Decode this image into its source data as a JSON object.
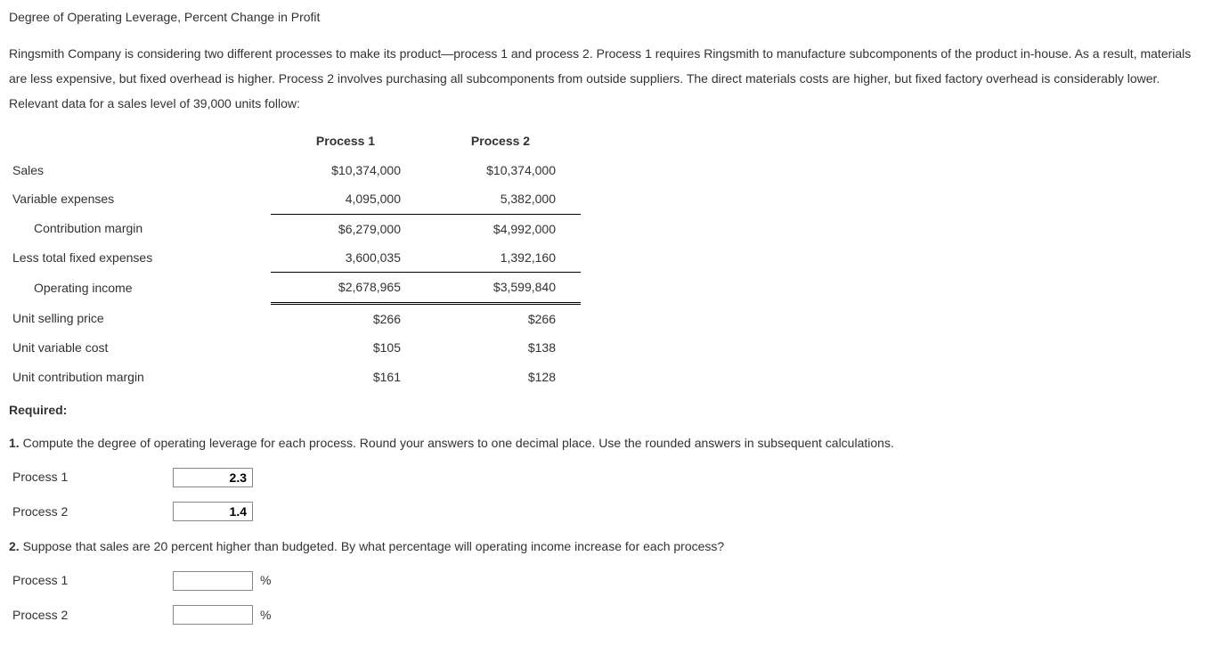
{
  "title": "Degree of Operating Leverage, Percent Change in Profit",
  "intro": "Ringsmith Company is considering two different processes to make its product—process 1 and process 2. Process 1 requires Ringsmith to manufacture subcomponents of the product in-house. As a result, materials are less expensive, but fixed overhead is higher. Process 2 involves purchasing all subcomponents from outside suppliers. The direct materials costs are higher, but fixed factory overhead is considerably lower. Relevant data for a sales level of 39,000 units follow:",
  "table": {
    "headers": {
      "p1": "Process 1",
      "p2": "Process 2"
    },
    "rows": {
      "sales": {
        "label": "Sales",
        "p1": "$10,374,000",
        "p2": "$10,374,000"
      },
      "varexp": {
        "label": "Variable expenses",
        "p1": "4,095,000",
        "p2": "5,382,000"
      },
      "cm": {
        "label": "Contribution margin",
        "p1": "$6,279,000",
        "p2": "$4,992,000"
      },
      "fixed": {
        "label": "Less total fixed expenses",
        "p1": "3,600,035",
        "p2": "1,392,160"
      },
      "opinc": {
        "label": "Operating income",
        "p1": "$2,678,965",
        "p2": "$3,599,840"
      },
      "usp": {
        "label": "Unit selling price",
        "p1": "$266",
        "p2": "$266"
      },
      "uvc": {
        "label": "Unit variable cost",
        "p1": "$105",
        "p2": "$138"
      },
      "ucm": {
        "label": "Unit contribution margin",
        "p1": "$161",
        "p2": "$128"
      }
    }
  },
  "required_label": "Required:",
  "q1": {
    "num": "1.",
    "text": " Compute the degree of operating leverage for each process. Round your answers to one decimal place. Use the rounded answers in subsequent calculations.",
    "p1_label": "Process 1",
    "p2_label": "Process 2",
    "p1_value": "2.3",
    "p2_value": "1.4"
  },
  "q2": {
    "num": "2.",
    "text": " Suppose that sales are 20 percent higher than budgeted. By what percentage will operating income increase for each process?",
    "p1_label": "Process 1",
    "p2_label": "Process 2",
    "p1_value": "",
    "p2_value": "",
    "unit": "%"
  }
}
